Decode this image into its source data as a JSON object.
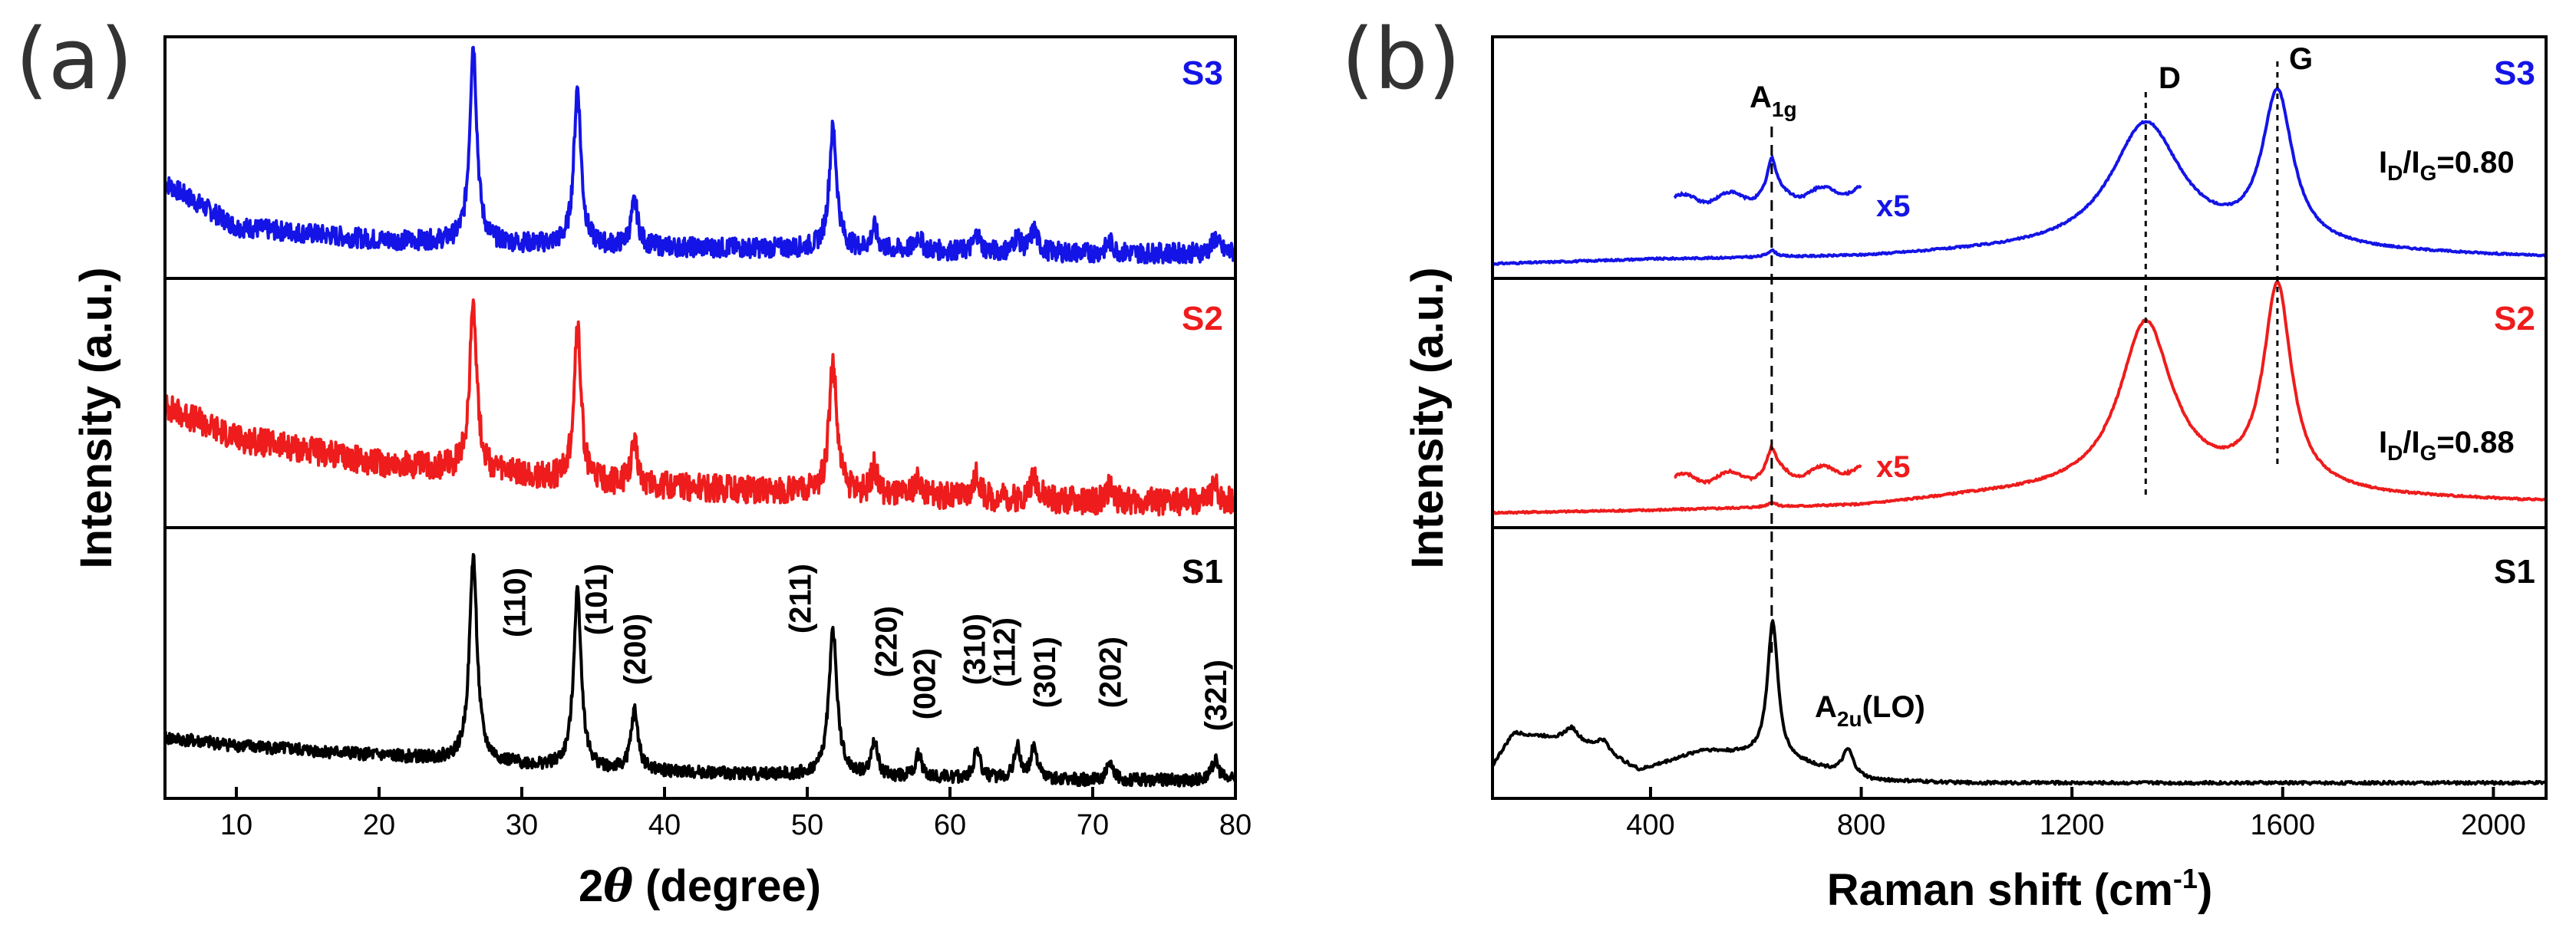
{
  "figure": {
    "panel_a_label": "(a)",
    "panel_b_label": "(b)"
  },
  "chart_data": [
    {
      "type": "line",
      "panel": "(a)",
      "title": "",
      "xlabel_prefix": "2",
      "xlabel_theta": "θ",
      "xlabel_suffix": " (degree)",
      "ylabel": "Intensity (a.u.)",
      "xlim": [
        5,
        80
      ],
      "xticks": [
        10,
        20,
        30,
        40,
        50,
        60,
        70,
        80
      ],
      "colors": {
        "S3": "#1414e6",
        "S2": "#ee1c1c",
        "S1": "#000000"
      },
      "series": [
        {
          "name": "S3",
          "baseline": [
            [
              5,
              0.42
            ],
            [
              10,
              0.22
            ],
            [
              20,
              0.16
            ],
            [
              26,
              0.15
            ],
            [
              35,
              0.13
            ],
            [
              50,
              0.12
            ],
            [
              60,
              0.11
            ],
            [
              70,
              0.1
            ],
            [
              80,
              0.1
            ]
          ],
          "noise": 0.045,
          "peaks": [
            [
              26.6,
              0.9,
              0.3
            ],
            [
              33.9,
              0.72,
              0.3
            ],
            [
              37.9,
              0.2,
              0.3
            ],
            [
              51.8,
              0.55,
              0.32
            ],
            [
              54.7,
              0.1,
              0.25
            ],
            [
              57.8,
              0.07,
              0.25
            ],
            [
              61.9,
              0.08,
              0.25
            ],
            [
              64.7,
              0.07,
              0.25
            ],
            [
              65.9,
              0.1,
              0.3
            ],
            [
              71.2,
              0.05,
              0.3
            ],
            [
              78.6,
              0.07,
              0.3
            ]
          ]
        },
        {
          "name": "S2",
          "baseline": [
            [
              5,
              0.52
            ],
            [
              10,
              0.38
            ],
            [
              20,
              0.27
            ],
            [
              26,
              0.24
            ],
            [
              35,
              0.18
            ],
            [
              50,
              0.14
            ],
            [
              60,
              0.12
            ],
            [
              70,
              0.1
            ],
            [
              80,
              0.1
            ]
          ],
          "noise": 0.06,
          "peaks": [
            [
              26.6,
              0.75,
              0.3
            ],
            [
              33.9,
              0.68,
              0.3
            ],
            [
              37.9,
              0.18,
              0.3
            ],
            [
              51.8,
              0.58,
              0.32
            ],
            [
              54.7,
              0.12,
              0.25
            ],
            [
              57.8,
              0.08,
              0.25
            ],
            [
              61.9,
              0.1,
              0.25
            ],
            [
              65.9,
              0.1,
              0.35
            ],
            [
              71.2,
              0.06,
              0.3
            ],
            [
              78.6,
              0.07,
              0.3
            ]
          ]
        },
        {
          "name": "S1",
          "baseline": [
            [
              5,
              0.23
            ],
            [
              10,
              0.2
            ],
            [
              20,
              0.16
            ],
            [
              26,
              0.14
            ],
            [
              35,
              0.1
            ],
            [
              50,
              0.08
            ],
            [
              60,
              0.07
            ],
            [
              70,
              0.06
            ],
            [
              80,
              0.06
            ]
          ],
          "noise": 0.025,
          "peaks": [
            [
              26.6,
              0.82,
              0.32
            ],
            [
              33.9,
              0.72,
              0.32
            ],
            [
              37.9,
              0.24,
              0.3
            ],
            [
              51.8,
              0.58,
              0.35
            ],
            [
              54.7,
              0.14,
              0.25
            ],
            [
              57.8,
              0.09,
              0.25
            ],
            [
              61.9,
              0.12,
              0.25
            ],
            [
              64.7,
              0.13,
              0.25
            ],
            [
              65.9,
              0.13,
              0.28
            ],
            [
              71.2,
              0.06,
              0.3
            ],
            [
              78.6,
              0.08,
              0.3
            ]
          ]
        }
      ],
      "reflections": [
        "(110)",
        "(101)",
        "(200)",
        "(211)",
        "(220)",
        "(002)",
        "(310)",
        "(112)",
        "(301)",
        "(202)",
        "(321)"
      ]
    },
    {
      "type": "line",
      "panel": "(b)",
      "title": "",
      "xlabel_main": "Raman shift (cm",
      "xlabel_sup": "-1",
      "xlabel_end": ")",
      "ylabel": "Intensity (a.u.)",
      "xlim": [
        100,
        2100
      ],
      "xticks": [
        400,
        800,
        1200,
        1600,
        2000
      ],
      "colors": {
        "S3": "#1414e6",
        "S2": "#ee1c1c",
        "S1": "#000000"
      },
      "series": [
        {
          "name": "S3",
          "baseline": [
            [
              100,
              0.05
            ],
            [
              400,
              0.07
            ],
            [
              800,
              0.08
            ],
            [
              1000,
              0.1
            ],
            [
              1400,
              0.13
            ],
            [
              1800,
              0.1
            ],
            [
              2100,
              0.08
            ]
          ],
          "noise": 0.004,
          "peaks": [
            [
              1340,
              0.56,
              80
            ],
            [
              1590,
              0.68,
              35
            ],
            [
              630,
              0.03,
              10
            ]
          ],
          "x5_segment": {
            "label": "x5",
            "range": [
              445,
              800
            ],
            "offset": 0.25
          },
          "ratio_main": "I",
          "ratio_sub1": "D",
          "ratio_mid": "/I",
          "ratio_sub2": "G",
          "ratio_value": "=0.80"
        },
        {
          "name": "S2",
          "baseline": [
            [
              100,
              0.05
            ],
            [
              400,
              0.06
            ],
            [
              800,
              0.08
            ],
            [
              1000,
              0.12
            ],
            [
              1400,
              0.17
            ],
            [
              1800,
              0.12
            ],
            [
              2100,
              0.1
            ]
          ],
          "noise": 0.004,
          "peaks": [
            [
              1340,
              0.72,
              60
            ],
            [
              1590,
              0.88,
              32
            ],
            [
              630,
              0.02,
              10
            ]
          ],
          "x5_segment": {
            "label": "x5",
            "range": [
              445,
              800
            ],
            "offset": 0.12
          },
          "ratio_main": "I",
          "ratio_sub1": "D",
          "ratio_mid": "/I",
          "ratio_sub2": "G",
          "ratio_value": "=0.88"
        },
        {
          "name": "S1",
          "baseline": [
            [
              100,
              0.12
            ],
            [
              140,
              0.25
            ],
            [
              250,
              0.22
            ],
            [
              300,
              0.18
            ],
            [
              380,
              0.1
            ],
            [
              500,
              0.18
            ],
            [
              600,
              0.16
            ],
            [
              700,
              0.12
            ],
            [
              820,
              0.06
            ],
            [
              1000,
              0.05
            ],
            [
              2100,
              0.05
            ]
          ],
          "noise": 0.006,
          "peaks": [
            [
              632,
              0.55,
              12
            ],
            [
              775,
              0.1,
              12
            ],
            [
              250,
              0.05,
              15
            ],
            [
              310,
              0.05,
              15
            ]
          ]
        }
      ],
      "guides": {
        "A1g_main": "A",
        "A1g_sub": "1g",
        "D": "D",
        "G": "G",
        "A2u_main": "A",
        "A2u_sub": "2u",
        "A2u_end": "(LO)"
      }
    }
  ]
}
